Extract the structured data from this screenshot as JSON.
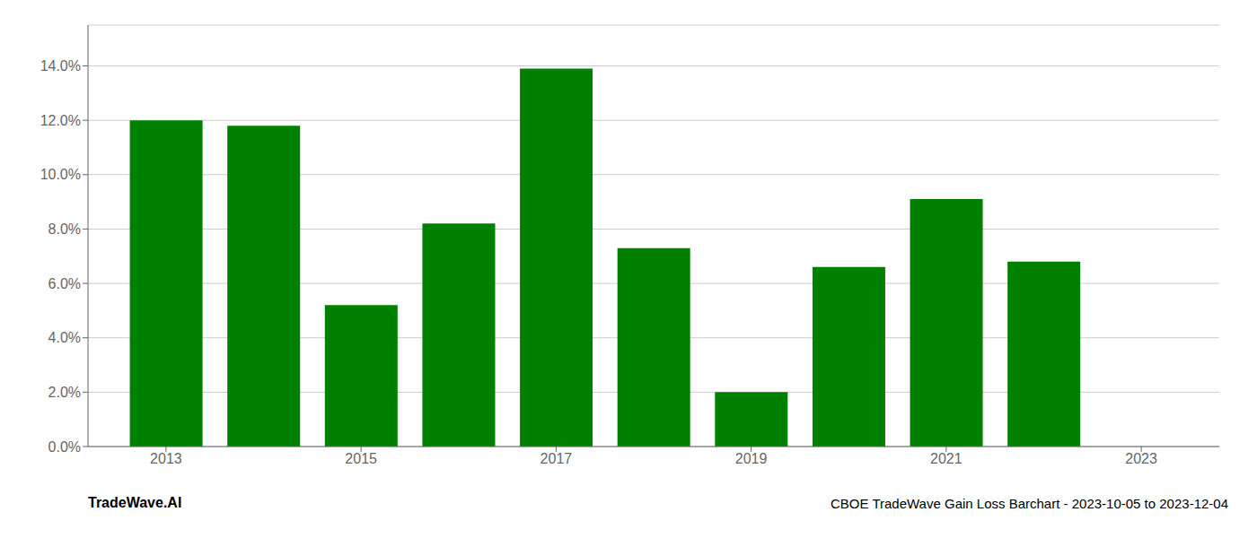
{
  "chart_data": {
    "type": "bar",
    "title": "CBOE TradeWave Gain Loss Barchart - 2023-10-05 to 2023-12-04",
    "annotations": [
      "TradeWave.AI"
    ],
    "x": [
      2013,
      2014,
      2015,
      2016,
      2017,
      2018,
      2019,
      2020,
      2021,
      2022,
      2023
    ],
    "values": [
      0.12,
      0.118,
      0.052,
      0.082,
      0.139,
      0.073,
      0.02,
      0.066,
      0.091,
      0.068,
      null
    ],
    "color": "#008000",
    "xlim": [
      2012.2,
      2023.8
    ],
    "xticks": [
      2013,
      2015,
      2017,
      2019,
      2021,
      2023
    ],
    "ylim": [
      0,
      0.155
    ],
    "yticks": [
      {
        "value": 0.0,
        "label": "0.0%"
      },
      {
        "value": 0.02,
        "label": "2.0%"
      },
      {
        "value": 0.04,
        "label": "4.0%"
      },
      {
        "value": 0.06,
        "label": "6.0%"
      },
      {
        "value": 0.08,
        "label": "8.0%"
      },
      {
        "value": 0.1,
        "label": "10.0%"
      },
      {
        "value": 0.12,
        "label": "12.0%"
      },
      {
        "value": 0.14,
        "label": "14.0%"
      }
    ],
    "grid": true
  }
}
